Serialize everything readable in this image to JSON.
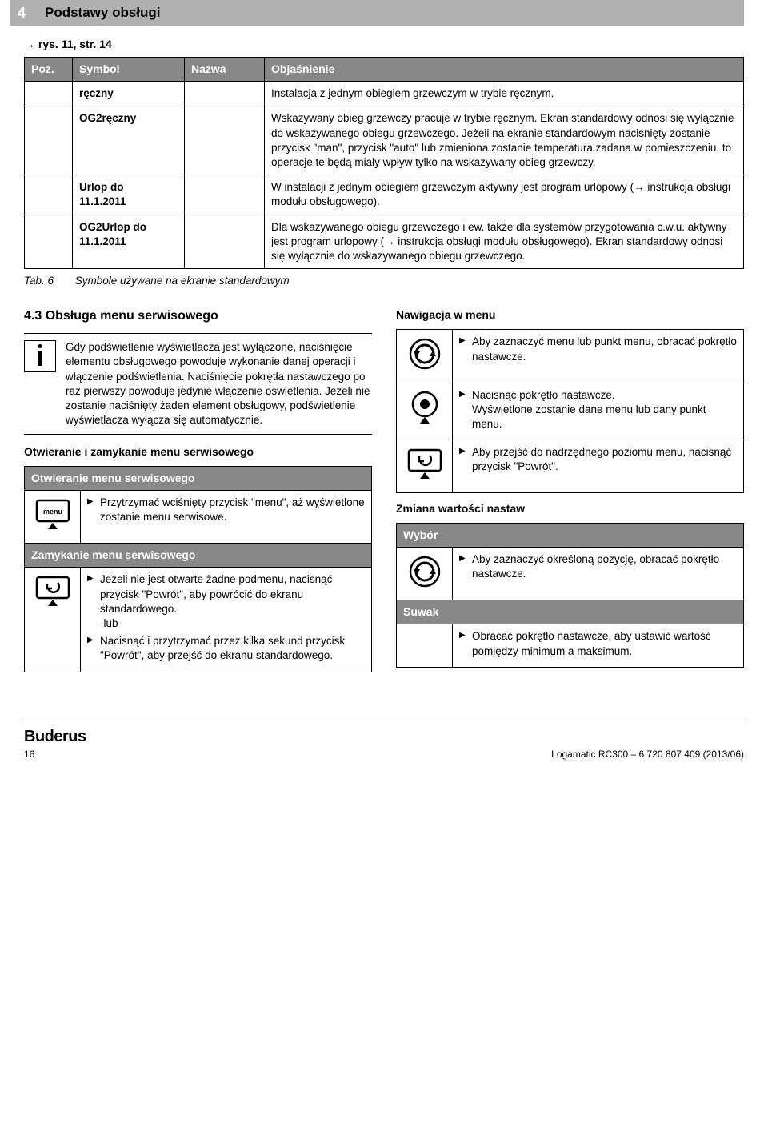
{
  "header": {
    "page_num": "4",
    "title": "Podstawy obsługi"
  },
  "ref_line": "→ rys. 11, str. 14",
  "table": {
    "headers": [
      "Poz.",
      "Symbol",
      "Nazwa",
      "Objaśnienie"
    ],
    "rows": [
      {
        "poz": "",
        "symbol": "ręczny",
        "nazwa": "",
        "desc": "Instalacja z jednym obiegiem grzewczym w trybie ręcznym."
      },
      {
        "poz": "",
        "symbol": "OG2ręczny",
        "nazwa": "",
        "desc": "Wskazywany obieg grzewczy pracuje w trybie ręcznym. Ekran standardowy odnosi się wyłącznie do wskazywanego obiegu grzewczego. Jeżeli na ekranie standardowym naciśnięty zostanie przycisk \"man\", przycisk \"auto\" lub zmieniona zostanie temperatura zadana w pomieszczeniu, to operacje te będą miały wpływ tylko na wskazywany obieg grzewczy."
      },
      {
        "poz": "",
        "symbol": "Urlop do\n11.1.2011",
        "nazwa": "",
        "desc": "W instalacji z jednym obiegiem grzewczym aktywny jest program urlopowy (→ instrukcja obsługi modułu obsługowego)."
      },
      {
        "poz": "",
        "symbol": "OG2Urlop do\n11.1.2011",
        "nazwa": "",
        "desc": "Dla wskazywanego obiegu grzewczego i ew. także dla systemów przygotowania c.w.u. aktywny jest program urlopowy (→ instrukcja obsługi modułu obsługowego). Ekran standardowy odnosi się wyłącznie do wskazywanego obiegu grzewczego."
      }
    ]
  },
  "caption": {
    "label": "Tab. 6",
    "text": "Symbole używane na ekranie standardowym"
  },
  "left": {
    "heading": "4.3   Obsługa menu serwisowego",
    "info": "Gdy podświetlenie wyświetlacza jest wyłączone, naciśnięcie elementu obsługowego powoduje wykonanie danej operacji i włączenie podświetlenia. Naciśnięcie pokrętła nastawczego po raz pierwszy powoduje jedynie włączenie oświetlenia. Jeżeli nie zostanie naciśnięty żaden element obsługowy, podświetlenie wyświetlacza wyłącza się automatycznie.",
    "sub1": "Otwieranie i zamykanie menu serwisowego",
    "open": {
      "hdr": "Otwieranie menu serwisowego",
      "item": "Przytrzymać wciśnięty przycisk \"menu\", aż wyświetlone zostanie menu serwisowe."
    },
    "close": {
      "hdr": "Zamykanie menu serwisowego",
      "i1": "Jeżeli nie jest otwarte żadne podmenu, nacisnąć przycisk \"Powrót\", aby powrócić do ekranu standardowego.\n-lub-",
      "i2": "Nacisnąć i przytrzymać przez kilka sekund przycisk \"Powrót\", aby przejść do ekranu standardowego."
    }
  },
  "right": {
    "nav_hdr": "Nawigacja w menu",
    "nav1": "Aby zaznaczyć menu lub punkt menu, obracać pokrętło nastawcze.",
    "nav2": "Nacisnąć pokrętło nastawcze.\nWyświetlone zostanie dane menu lub dany punkt menu.",
    "nav3": "Aby przejść do nadrzędnego poziomu menu, nacisnąć przycisk \"Powrót\".",
    "chg_hdr": "Zmiana wartości nastaw",
    "wybor_hdr": "Wybór",
    "wybor": "Aby zaznaczyć określoną pozycję, obracać pokrętło nastawcze.",
    "suwak_hdr": "Suwak",
    "suwak": "Obracać pokrętło nastawcze, aby ustawić wartość pomiędzy minimum a maksimum."
  },
  "footer": {
    "page": "16",
    "doc": "Logamatic RC300 – 6 720 807 409 (2013/06)",
    "brand": "Buderus"
  },
  "colors": {
    "hdr_gray": "#888888",
    "bar_gray": "#b0b0b0"
  }
}
